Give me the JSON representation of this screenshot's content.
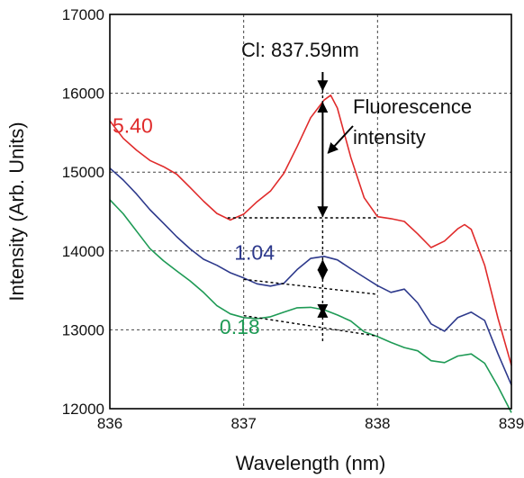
{
  "chart_data": {
    "type": "line",
    "title": "",
    "xlabel": "Wavelength (nm)",
    "ylabel": "Intensity (Arb. Units)",
    "xlim": [
      836,
      839
    ],
    "ylim": [
      12000,
      17000
    ],
    "xticks": [
      "836",
      "837",
      "838",
      "839"
    ],
    "yticks": [
      "12000",
      "13000",
      "14000",
      "15000",
      "16000",
      "17000"
    ],
    "grid": true,
    "series": [
      {
        "color": "#e02b2b",
        "x": [
          836.0,
          836.1,
          836.2,
          836.3,
          836.4,
          836.5,
          836.6,
          836.7,
          836.8,
          836.9,
          837.0,
          837.1,
          837.2,
          837.3,
          837.4,
          837.5,
          837.6,
          837.65,
          837.7,
          837.8,
          837.9,
          838.0,
          838.1,
          838.2,
          838.3,
          838.4,
          838.5,
          838.6,
          838.65,
          838.7,
          838.8,
          838.9,
          839.0
        ],
        "y": [
          15650,
          15450,
          15300,
          15150,
          15050,
          14950,
          14800,
          14650,
          14500,
          14400,
          14450,
          14600,
          14750,
          15000,
          15350,
          15700,
          15900,
          15950,
          15800,
          15200,
          14700,
          14450,
          14400,
          14350,
          14200,
          14050,
          14150,
          14300,
          14330,
          14250,
          13800,
          13150,
          12550
        ]
      },
      {
        "color": "#2e3a8c",
        "x": [
          836.0,
          836.1,
          836.2,
          836.3,
          836.4,
          836.5,
          836.6,
          836.7,
          836.8,
          836.9,
          837.0,
          837.1,
          837.2,
          837.3,
          837.4,
          837.5,
          837.6,
          837.7,
          837.8,
          837.9,
          838.0,
          838.1,
          838.2,
          838.3,
          838.4,
          838.5,
          838.6,
          838.7,
          838.8,
          838.9,
          839.0
        ],
        "y": [
          15050,
          14900,
          14700,
          14500,
          14350,
          14200,
          14050,
          13900,
          13800,
          13700,
          13650,
          13600,
          13580,
          13600,
          13750,
          13880,
          13920,
          13900,
          13800,
          13680,
          13550,
          13450,
          13500,
          13350,
          13100,
          13000,
          13150,
          13200,
          13100,
          12700,
          12300
        ]
      },
      {
        "color": "#1e9a55",
        "x": [
          836.0,
          836.1,
          836.2,
          836.3,
          836.4,
          836.5,
          836.6,
          836.7,
          836.8,
          836.9,
          837.0,
          837.1,
          837.2,
          837.3,
          837.4,
          837.5,
          837.6,
          837.7,
          837.8,
          837.9,
          838.0,
          838.1,
          838.2,
          838.3,
          838.4,
          838.5,
          838.6,
          838.7,
          838.8,
          838.9,
          839.0
        ],
        "y": [
          14650,
          14450,
          14250,
          14050,
          13900,
          13750,
          13600,
          13450,
          13300,
          13220,
          13180,
          13150,
          13150,
          13200,
          13270,
          13300,
          13280,
          13200,
          13100,
          12950,
          12900,
          12850,
          12800,
          12750,
          12600,
          12560,
          12650,
          12700,
          12600,
          12300,
          11950
        ]
      }
    ],
    "annotations": {
      "cl_label": "Cl: 837.59nm",
      "cl_x": 837.59,
      "fl_label_1": "Fluorescence",
      "fl_label_2": "intensity",
      "values": [
        {
          "text": "5.40",
          "color": "#e02b2b",
          "x": 836.02,
          "y": 15500
        },
        {
          "text": "1.04",
          "color": "#2e3a8c",
          "x": 836.93,
          "y": 13890
        },
        {
          "text": "0.18",
          "color": "#1e9a55",
          "x": 836.82,
          "y": 12950
        }
      ],
      "baselines": [
        [
          [
            836.88,
            14420
          ],
          [
            838.0,
            14420
          ]
        ],
        [
          [
            837.0,
            13640
          ],
          [
            838.0,
            13450
          ]
        ],
        [
          [
            837.0,
            13180
          ],
          [
            838.0,
            12920
          ]
        ]
      ],
      "arrows": [
        [
          15900,
          14420
        ],
        [
          13900,
          13620
        ],
        [
          13300,
          13180
        ]
      ]
    }
  }
}
